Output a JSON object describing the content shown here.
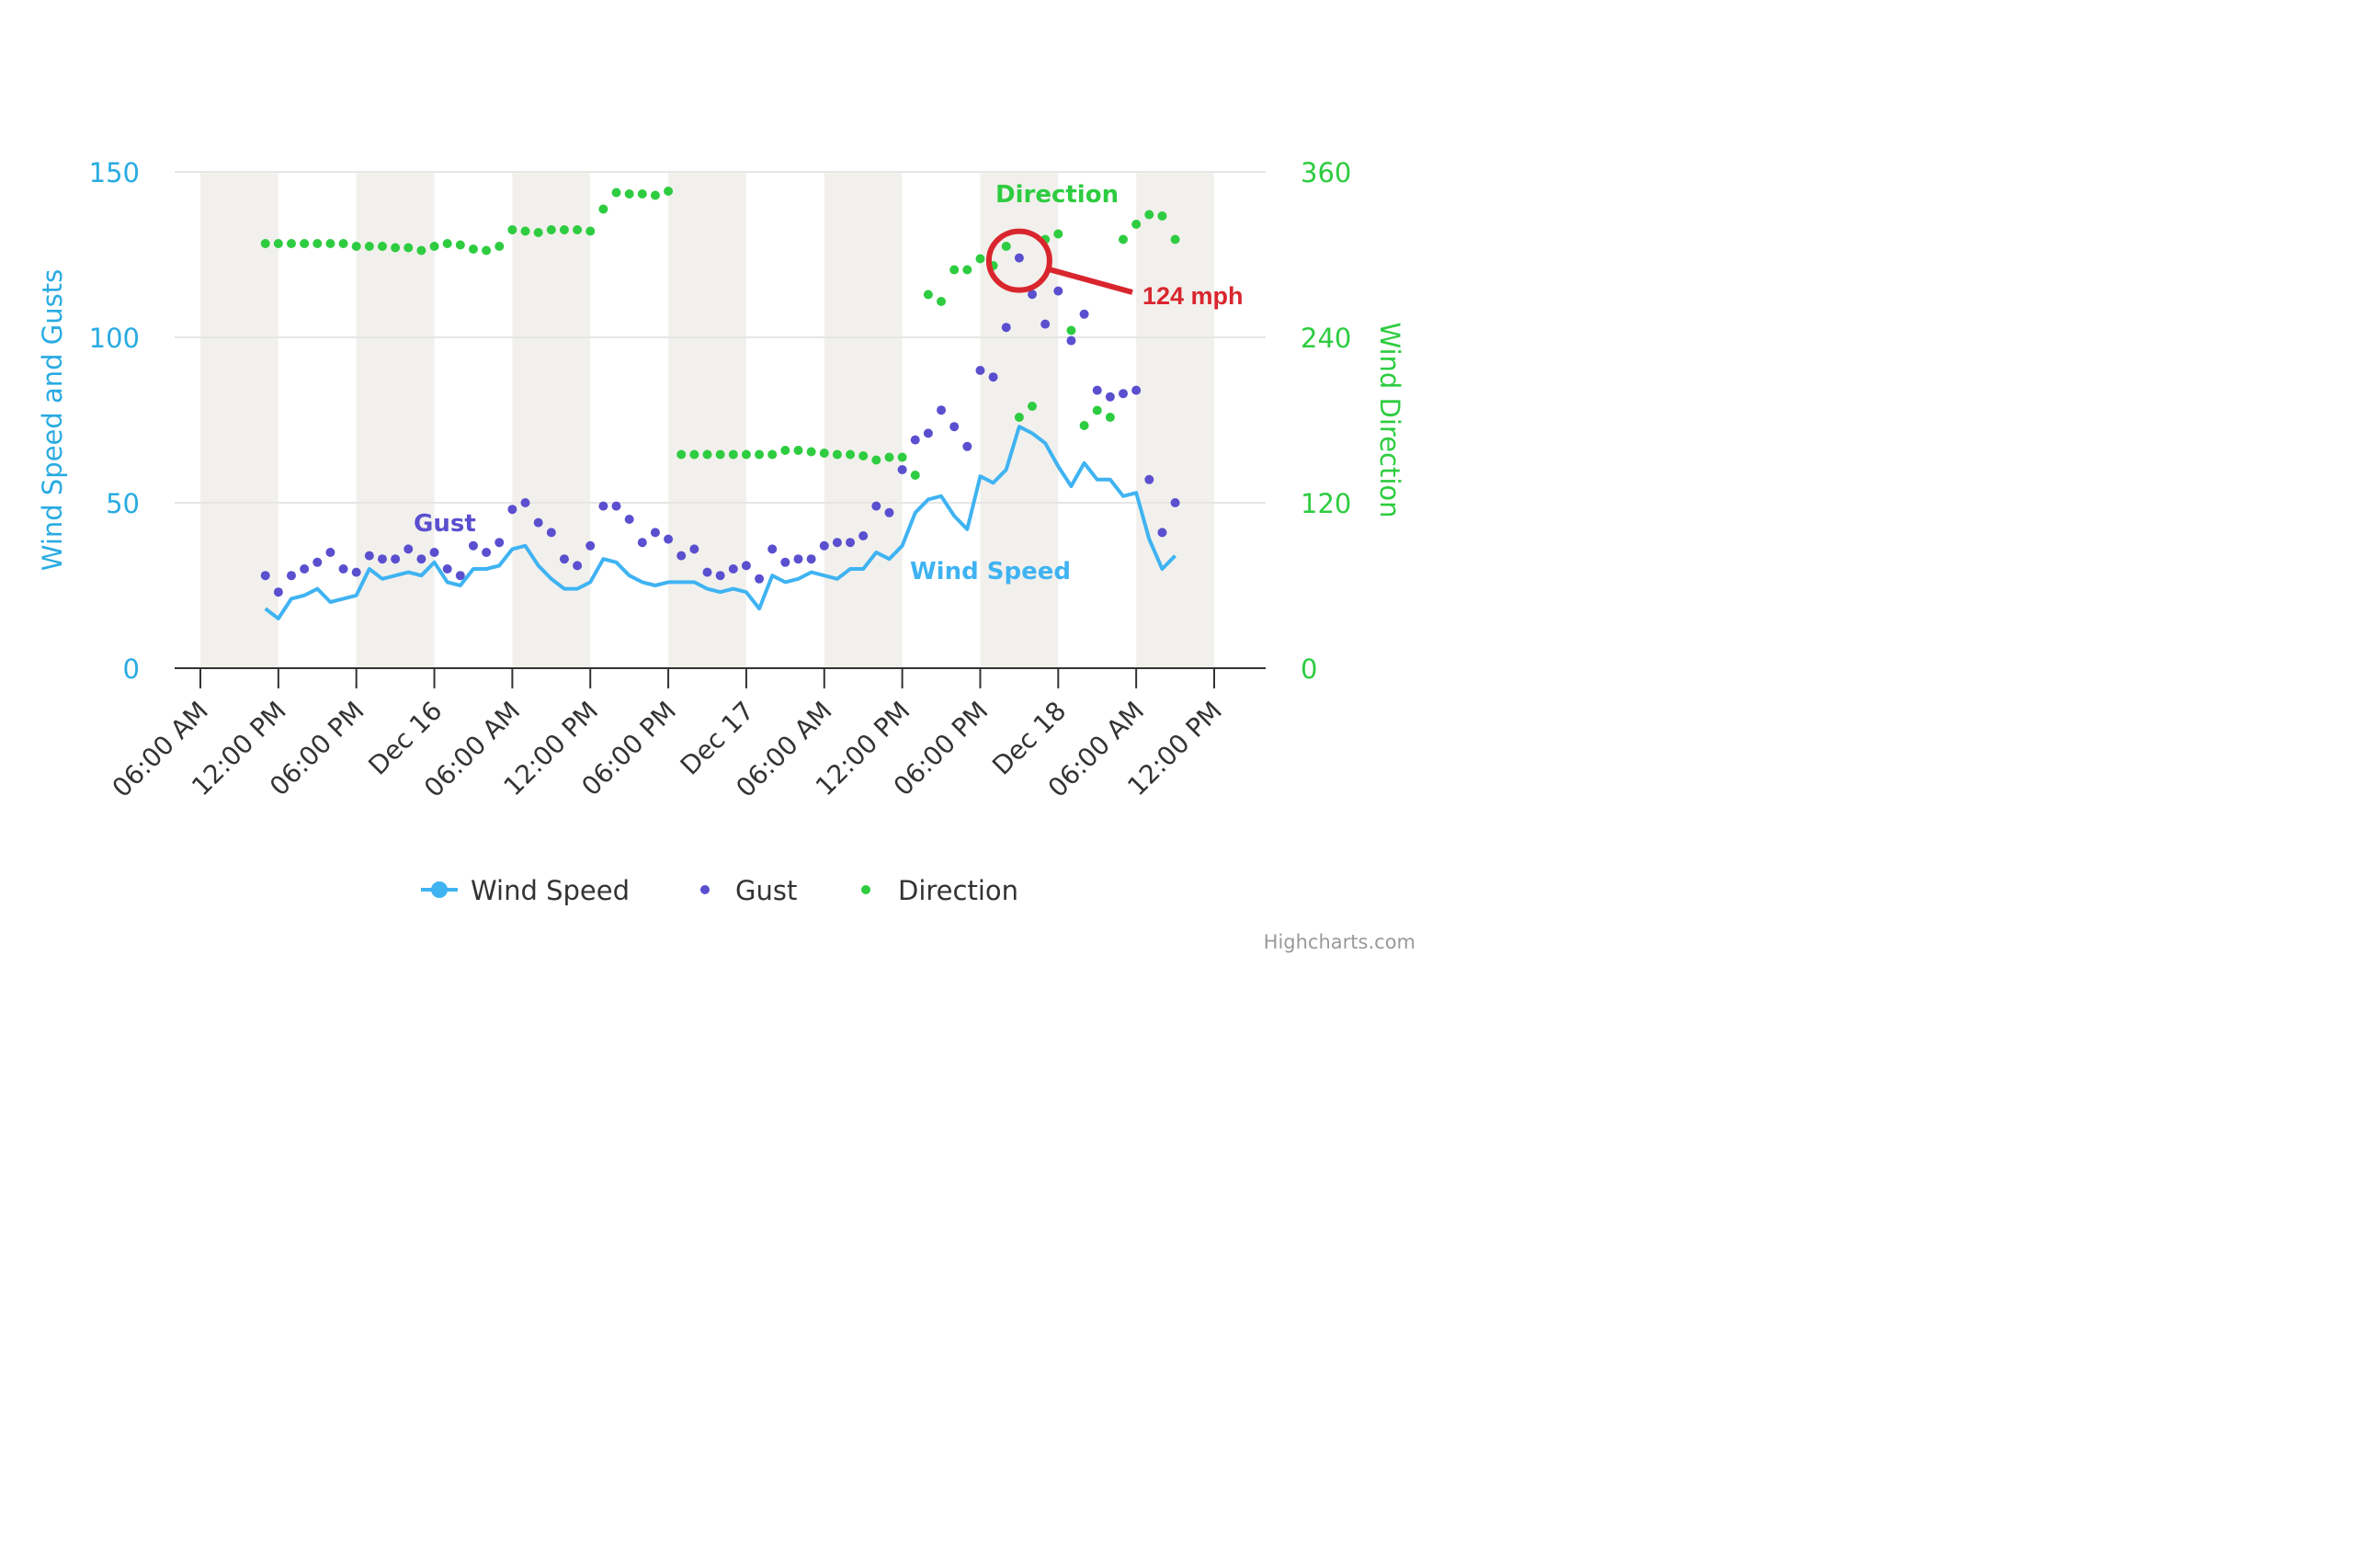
{
  "chart_data": {
    "type": "line",
    "left_axis": {
      "title": "Wind Speed and Gusts",
      "ylim": [
        0,
        150
      ],
      "ticks": [
        "0",
        "50",
        "100",
        "150"
      ],
      "color": "#29abe2"
    },
    "right_axis": {
      "title": "Wind Direction",
      "ylim": [
        0,
        360
      ],
      "ticks": [
        "0",
        "120",
        "240",
        "360"
      ],
      "color": "#2ecc40"
    },
    "x_axis": {
      "unit": "hours",
      "range": [
        0,
        78
      ],
      "tick_labels": [
        "06:00 AM",
        "12:00 PM",
        "06:00 PM",
        "Dec 16",
        "06:00 AM",
        "12:00 PM",
        "06:00 PM",
        "Dec 17",
        "06:00 AM",
        "12:00 PM",
        "06:00 PM",
        "Dec 18",
        "06:00 AM",
        "12:00 PM"
      ],
      "night_bands": [
        [
          0,
          6
        ],
        [
          12,
          18
        ],
        [
          24,
          30
        ],
        [
          36,
          42
        ],
        [
          48,
          54
        ],
        [
          60,
          66
        ],
        [
          72,
          78
        ]
      ]
    },
    "grid": true,
    "legend_position": "bottom-center",
    "credits": "Highcharts.com",
    "series": [
      {
        "name": "Wind Speed",
        "kind": "line",
        "color": "#3fb3f2",
        "x": [
          5,
          6,
          7,
          8,
          9,
          10,
          11,
          12,
          13,
          14,
          15,
          16,
          17,
          18,
          19,
          20,
          21,
          22,
          23,
          24,
          25,
          26,
          27,
          28,
          29,
          30,
          31,
          32,
          33,
          34,
          35,
          36,
          37,
          38,
          39,
          40,
          41,
          42,
          43,
          44,
          45,
          46,
          47,
          48,
          49,
          50,
          51,
          52,
          53,
          54,
          55,
          56,
          57,
          58,
          59,
          60,
          61,
          62,
          63,
          64,
          65,
          66,
          67,
          68,
          69,
          70,
          71,
          72,
          73,
          74,
          75
        ],
        "values": [
          18,
          15,
          21,
          22,
          24,
          20,
          21,
          22,
          30,
          27,
          28,
          29,
          28,
          32,
          26,
          25,
          30,
          30,
          31,
          36,
          37,
          31,
          27,
          24,
          24,
          26,
          33,
          32,
          28,
          26,
          25,
          26,
          26,
          26,
          24,
          23,
          24,
          23,
          18,
          28,
          26,
          27,
          29,
          28,
          27,
          30,
          30,
          35,
          33,
          37,
          47,
          51,
          52,
          46,
          42,
          58,
          56,
          60,
          73,
          71,
          68,
          61,
          55,
          62,
          57,
          57,
          52,
          53,
          39,
          30,
          34
        ]
      },
      {
        "name": "Gust",
        "kind": "scatter",
        "color": "#5a4fcf",
        "x": [
          5,
          6,
          7,
          8,
          9,
          10,
          11,
          12,
          13,
          14,
          15,
          16,
          17,
          18,
          19,
          20,
          21,
          22,
          23,
          24,
          25,
          26,
          27,
          28,
          29,
          30,
          31,
          32,
          33,
          34,
          35,
          36,
          37,
          38,
          39,
          40,
          41,
          42,
          43,
          44,
          45,
          46,
          47,
          48,
          49,
          50,
          51,
          52,
          53,
          54,
          55,
          56,
          57,
          58,
          59,
          60,
          61,
          62,
          63,
          64,
          65,
          66,
          67,
          68,
          69,
          70,
          71,
          72,
          73,
          74,
          75
        ],
        "values": [
          28,
          23,
          28,
          30,
          32,
          35,
          30,
          29,
          34,
          33,
          33,
          36,
          33,
          35,
          30,
          28,
          37,
          35,
          38,
          48,
          50,
          44,
          41,
          33,
          31,
          37,
          49,
          49,
          45,
          38,
          41,
          39,
          34,
          36,
          29,
          28,
          30,
          31,
          27,
          36,
          32,
          33,
          33,
          37,
          38,
          38,
          40,
          49,
          47,
          60,
          69,
          71,
          78,
          73,
          67,
          90,
          88,
          103,
          124,
          113,
          104,
          114,
          99,
          107,
          84,
          82,
          83,
          84,
          57,
          41,
          50
        ]
      },
      {
        "name": "Direction",
        "kind": "scatter",
        "axis": "right",
        "color": "#2ecc40",
        "x": [
          5,
          6,
          7,
          8,
          9,
          10,
          11,
          12,
          13,
          14,
          15,
          16,
          17,
          18,
          19,
          20,
          21,
          22,
          23,
          24,
          25,
          26,
          27,
          28,
          29,
          30,
          31,
          32,
          33,
          34,
          35,
          36,
          37,
          38,
          39,
          40,
          41,
          42,
          43,
          44,
          45,
          46,
          47,
          48,
          49,
          50,
          51,
          52,
          53,
          54,
          55,
          56,
          57,
          58,
          59,
          60,
          61,
          62,
          63,
          64,
          65,
          66,
          67,
          68,
          69,
          70,
          71,
          72,
          73,
          74,
          75
        ],
        "values": [
          308,
          308,
          308,
          308,
          308,
          308,
          308,
          306,
          306,
          306,
          305,
          305,
          303,
          306,
          308,
          307,
          304,
          303,
          306,
          318,
          317,
          316,
          318,
          318,
          318,
          317,
          333,
          345,
          344,
          344,
          343,
          346,
          155,
          155,
          155,
          155,
          155,
          155,
          155,
          155,
          158,
          158,
          157,
          156,
          155,
          155,
          154,
          151,
          153,
          153,
          140,
          271,
          266,
          289,
          289,
          297,
          292,
          306,
          182,
          190,
          311,
          315,
          245,
          176,
          187,
          182,
          311,
          322,
          329,
          328,
          311
        ]
      }
    ],
    "labels": [
      {
        "text": "Gust",
        "color": "#5a4fcf"
      },
      {
        "text": "Wind Speed",
        "color": "#3fb3f2"
      },
      {
        "text": "Direction",
        "color": "#2ecc40"
      }
    ],
    "annotation": {
      "text": "124 mph",
      "color": "#d9262e",
      "series": "Gust",
      "x": 63,
      "value": 124
    }
  }
}
